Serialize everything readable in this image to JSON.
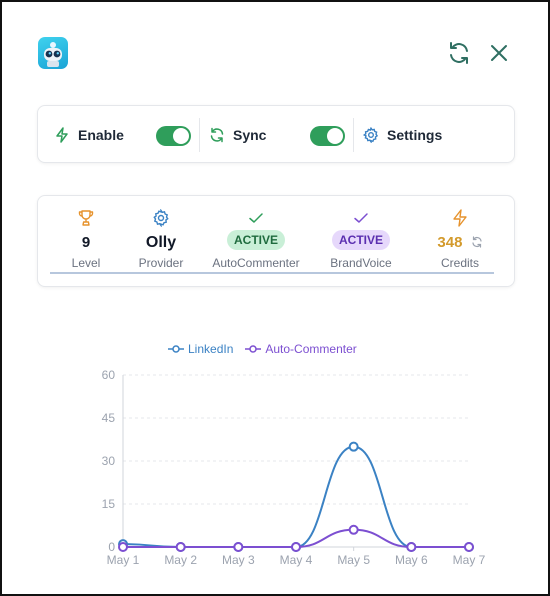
{
  "header": {
    "logo_icon": "robot-logo-icon",
    "refresh_icon": "refresh-icon",
    "close_icon": "close-icon"
  },
  "controls": {
    "enable": {
      "label": "Enable",
      "icon": "bolt-icon",
      "on": true
    },
    "sync": {
      "label": "Sync",
      "icon": "sync-icon",
      "on": true
    },
    "settings": {
      "label": "Settings",
      "icon": "gear-icon"
    }
  },
  "stats": {
    "level": {
      "value": "9",
      "caption": "Level",
      "icon": "trophy-icon"
    },
    "provider": {
      "value": "Olly",
      "caption": "Provider",
      "icon": "gear-icon"
    },
    "autocommenter": {
      "value": "ACTIVE",
      "caption": "AutoCommenter",
      "icon": "check-icon"
    },
    "brandvoice": {
      "value": "ACTIVE",
      "caption": "BrandVoice",
      "icon": "check-icon"
    },
    "credits": {
      "value": "348",
      "caption": "Credits",
      "icon": "bolt-icon",
      "refresh_icon": "refresh-icon"
    }
  },
  "colors": {
    "accent_green": "#2f9e5b",
    "linkedin": "#3b82c4",
    "auto_commenter": "#7c4fd1",
    "credits": "#d39a2c"
  },
  "chart_data": {
    "type": "line",
    "categories": [
      "May 1",
      "May 2",
      "May 3",
      "May 4",
      "May 5",
      "May 6",
      "May 7"
    ],
    "series": [
      {
        "name": "LinkedIn",
        "values": [
          1,
          0,
          0,
          0,
          35,
          0,
          0
        ],
        "color": "#3b82c4"
      },
      {
        "name": "Auto-Commenter",
        "values": [
          0,
          0,
          0,
          0,
          6,
          0,
          0
        ],
        "color": "#7c4fd1"
      }
    ],
    "yticks": [
      "0",
      "15",
      "30",
      "45",
      "60"
    ],
    "ylim": [
      0,
      60
    ],
    "grid": true,
    "legend": "top-center",
    "smooth": true
  }
}
